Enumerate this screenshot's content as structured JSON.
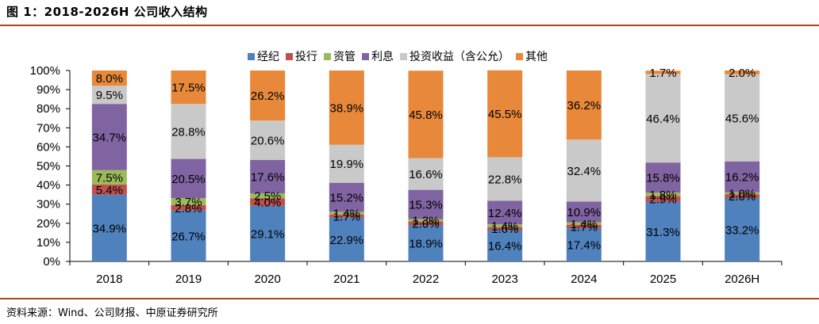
{
  "figure": {
    "title": "图 1：2018-2026H 公司收入结构",
    "source": "资料来源：Wind、公司财报、中原证券研究所"
  },
  "colors": {
    "rule": "#b04a1c",
    "series": [
      "#4f81bd",
      "#c0504d",
      "#9bbb59",
      "#8064a2",
      "#c9c9c9",
      "#e8883a"
    ]
  },
  "chart_data": {
    "type": "bar",
    "stacked": true,
    "percent": true,
    "categories": [
      "2018",
      "2019",
      "2020",
      "2021",
      "2022",
      "2023",
      "2024",
      "2025",
      "2026H"
    ],
    "ylim": [
      0,
      100
    ],
    "yticks": [
      "0%",
      "10%",
      "20%",
      "30%",
      "40%",
      "50%",
      "60%",
      "70%",
      "80%",
      "90%",
      "100%"
    ],
    "legend_position": "top-center",
    "grid": false,
    "series": [
      {
        "name": "经纪",
        "values": [
          34.9,
          26.7,
          29.1,
          22.9,
          18.9,
          16.4,
          17.4,
          31.3,
          33.2
        ],
        "labels": [
          "34.9%",
          "26.7%",
          "29.1%",
          "22.9%",
          "18.9%",
          "16.4%",
          "17.4%",
          "31.3%",
          "33.2%"
        ]
      },
      {
        "name": "投行",
        "values": [
          5.4,
          2.8,
          4.0,
          1.7,
          2.0,
          1.6,
          1.7,
          2.9,
          2.0
        ],
        "labels": [
          "5.4%",
          "2.8%",
          "4.0%",
          "1.7%",
          "2.0%",
          "1.6%",
          "1.7%",
          "2.9%",
          "2.0%"
        ]
      },
      {
        "name": "资管",
        "values": [
          7.5,
          3.7,
          2.5,
          1.4,
          1.3,
          1.4,
          1.4,
          1.8,
          1.0
        ],
        "labels": [
          "7.5%",
          "3.7%",
          "2.5%",
          "1.4%",
          "1.3%",
          "1.4%",
          "1.4%",
          "1.8%",
          "1.0%"
        ]
      },
      {
        "name": "利息",
        "values": [
          34.7,
          20.5,
          17.6,
          15.2,
          15.3,
          12.4,
          10.9,
          15.8,
          16.2
        ],
        "labels": [
          "34.7%",
          "20.5%",
          "17.6%",
          "15.2%",
          "15.3%",
          "12.4%",
          "10.9%",
          "15.8%",
          "16.2%"
        ]
      },
      {
        "name": "投资收益（含公允）",
        "values": [
          9.5,
          28.8,
          20.6,
          19.9,
          16.6,
          22.8,
          32.4,
          46.4,
          45.6
        ],
        "labels": [
          "9.5%",
          "28.8%",
          "20.6%",
          "19.9%",
          "16.6%",
          "22.8%",
          "32.4%",
          "46.4%",
          "45.6%"
        ]
      },
      {
        "name": "其他",
        "values": [
          8.0,
          17.5,
          26.2,
          38.9,
          45.8,
          45.5,
          36.2,
          1.7,
          2.0
        ],
        "labels": [
          "8.0%",
          "17.5%",
          "26.2%",
          "38.9%",
          "45.8%",
          "45.5%",
          "36.2%",
          "1.7%",
          "2.0%"
        ]
      }
    ]
  }
}
